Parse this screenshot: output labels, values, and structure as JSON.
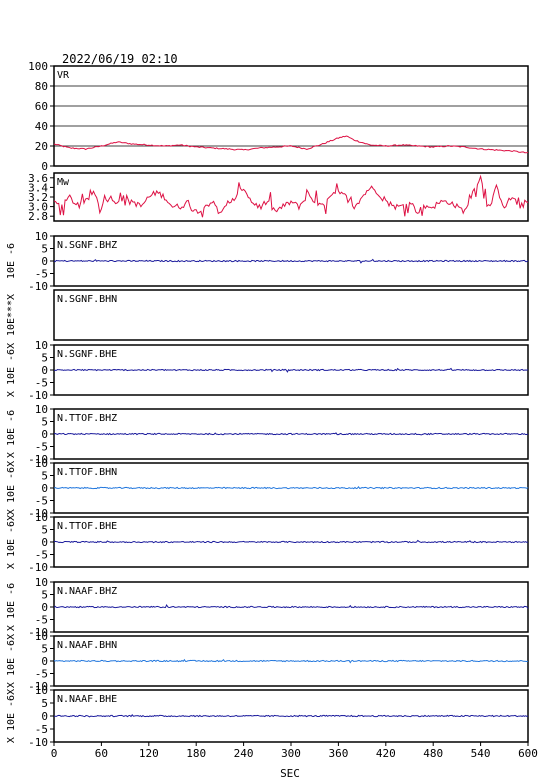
{
  "timestamp": "2022/06/19 02:10",
  "x_axis": {
    "label": "SEC",
    "min": 0,
    "max": 600,
    "ticks": [
      "0",
      "60",
      "120",
      "180",
      "240",
      "300",
      "360",
      "420",
      "480",
      "540",
      "600"
    ]
  },
  "colors": {
    "frame": "#000000",
    "vr_mw_trace": "#dd1144",
    "dark_trace": "#1a1a9c",
    "light_trace": "#2277dd"
  },
  "chart_data": [
    {
      "type": "line",
      "panel": "VR",
      "label": "VR",
      "ylim": [
        0,
        100
      ],
      "y_ticks": [
        "100",
        "80",
        "60",
        "40",
        "20",
        "0"
      ],
      "grid": true,
      "x": [
        0,
        20,
        40,
        60,
        80,
        100,
        120,
        140,
        160,
        180,
        200,
        220,
        240,
        260,
        280,
        300,
        320,
        340,
        360,
        370,
        380,
        400,
        420,
        440,
        460,
        480,
        500,
        520,
        540,
        560,
        580,
        600
      ],
      "values": [
        22,
        18,
        17,
        20,
        24,
        22,
        21,
        20,
        21,
        19,
        18,
        17,
        16,
        18,
        19,
        20,
        17,
        22,
        28,
        30,
        26,
        21,
        20,
        21,
        20,
        19,
        20,
        19,
        17,
        16,
        15,
        13
      ]
    },
    {
      "type": "line",
      "panel": "Mw",
      "label": "Mw",
      "ylim": [
        2.7,
        3.7
      ],
      "y_ticks": [
        "3.6",
        "3.4",
        "3.2",
        "3.0",
        "2.8"
      ],
      "grid": false,
      "x": [
        0,
        10,
        20,
        30,
        40,
        50,
        60,
        70,
        80,
        90,
        100,
        110,
        120,
        130,
        140,
        150,
        160,
        170,
        180,
        190,
        200,
        210,
        220,
        230,
        240,
        250,
        260,
        270,
        280,
        290,
        300,
        310,
        320,
        330,
        340,
        350,
        360,
        370,
        380,
        390,
        400,
        410,
        420,
        430,
        440,
        450,
        460,
        470,
        480,
        490,
        500,
        510,
        520,
        530,
        540,
        550,
        560,
        570,
        580,
        590,
        600
      ],
      "values": [
        3.1,
        3.0,
        3.2,
        3.0,
        3.1,
        3.3,
        3.0,
        3.2,
        3.1,
        3.2,
        3.1,
        3.0,
        3.2,
        3.3,
        3.2,
        3.0,
        3.0,
        3.1,
        2.9,
        3.0,
        3.1,
        2.9,
        3.0,
        3.2,
        3.4,
        3.1,
        3.0,
        3.1,
        2.9,
        3.0,
        3.1,
        3.0,
        3.2,
        3.1,
        3.0,
        3.2,
        3.3,
        3.2,
        3.0,
        3.2,
        3.4,
        3.3,
        3.1,
        3.0,
        3.0,
        3.1,
        2.9,
        3.0,
        3.0,
        3.1,
        3.1,
        3.0,
        2.9,
        3.3,
        3.6,
        2.9,
        3.4,
        3.0,
        3.2,
        3.0,
        3.1
      ]
    },
    {
      "type": "line",
      "panel": "N.SGNF.BHZ",
      "label": "N.SGNF.BHZ",
      "ylabel": "10E -6",
      "ylim": [
        -10,
        10
      ],
      "y_ticks": [
        "10",
        "5",
        "0",
        "-5",
        "-10"
      ],
      "grid": false,
      "trace_color": "dark",
      "values": [
        0
      ]
    },
    {
      "type": "line",
      "panel": "N.SGNF.BHN",
      "label": "N.SGNF.BHN",
      "ylabel": "10E***X",
      "y_ticks": [],
      "grid": false,
      "values": []
    },
    {
      "type": "line",
      "panel": "N.SGNF.BHE",
      "label": "N.SGNF.BHE",
      "ylabel": "X 10E -6X",
      "ylim": [
        -10,
        10
      ],
      "y_ticks": [
        "10",
        "5",
        "0",
        "-5",
        "-10"
      ],
      "grid": false,
      "trace_color": "dark",
      "values": [
        0
      ]
    },
    {
      "type": "line",
      "panel": "N.TTOF.BHZ",
      "label": "N.TTOF.BHZ",
      "ylabel": "X 10E -6",
      "ylim": [
        -10,
        10
      ],
      "y_ticks": [
        "10",
        "5",
        "0",
        "-5",
        "-10"
      ],
      "grid": false,
      "trace_color": "dark",
      "values": [
        0
      ]
    },
    {
      "type": "line",
      "panel": "N.TTOF.BHN",
      "label": "N.TTOF.BHN",
      "ylabel": "X 10E -6X",
      "ylim": [
        -10,
        10
      ],
      "y_ticks": [
        "10",
        "5",
        "0",
        "-5",
        "-10"
      ],
      "grid": false,
      "trace_color": "light",
      "values": [
        0
      ]
    },
    {
      "type": "line",
      "panel": "N.TTOF.BHE",
      "label": "N.TTOF.BHE",
      "ylabel": "X 10E -6X",
      "ylim": [
        -10,
        10
      ],
      "y_ticks": [
        "10",
        "5",
        "0",
        "-5",
        "-10"
      ],
      "grid": false,
      "trace_color": "dark",
      "values": [
        0
      ]
    },
    {
      "type": "line",
      "panel": "N.NAAF.BHZ",
      "label": "N.NAAF.BHZ",
      "ylabel": "X 10E -6",
      "ylim": [
        -10,
        10
      ],
      "y_ticks": [
        "10",
        "5",
        "0",
        "-5",
        "-10"
      ],
      "grid": false,
      "trace_color": "dark",
      "values": [
        0
      ]
    },
    {
      "type": "line",
      "panel": "N.NAAF.BHN",
      "label": "N.NAAF.BHN",
      "ylabel": "X 10E -6X",
      "ylim": [
        -10,
        10
      ],
      "y_ticks": [
        "10",
        "5",
        "0",
        "-5",
        "-10"
      ],
      "grid": false,
      "trace_color": "light",
      "values": [
        0
      ]
    },
    {
      "type": "line",
      "panel": "N.NAAF.BHE",
      "label": "N.NAAF.BHE",
      "ylabel": "X 10E -6X",
      "ylim": [
        -10,
        10
      ],
      "y_ticks": [
        "10",
        "5",
        "0",
        "-5",
        "-10"
      ],
      "grid": false,
      "trace_color": "dark",
      "values": [
        0
      ]
    }
  ]
}
